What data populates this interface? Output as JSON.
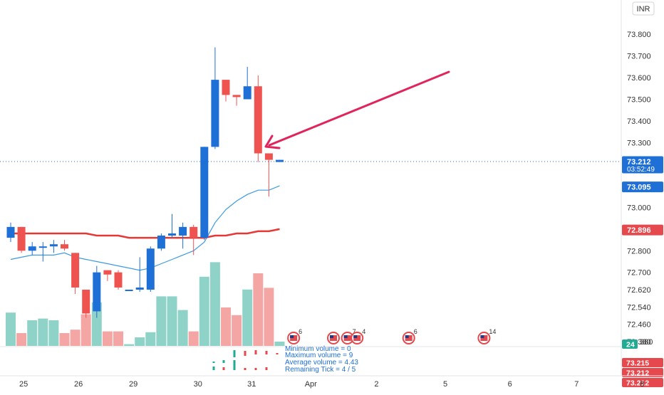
{
  "currency_button": "INR",
  "chart_data": {
    "type": "candlestick",
    "ylim": [
      72.38,
      73.86
    ],
    "y_ticks": [
      "73.800",
      "73.700",
      "73.600",
      "73.500",
      "73.400",
      "73.300",
      "73.000",
      "72.800",
      "72.700",
      "72.620",
      "72.540",
      "72.460",
      "72.380"
    ],
    "x_tick_labels": [
      "25",
      "26",
      "29",
      "30",
      "31",
      "Apr",
      "2",
      "5",
      "6",
      "7",
      "8"
    ],
    "x_tick_index": [
      1.2,
      6.3,
      11.4,
      17.4,
      22.4,
      27.9,
      34.0,
      40.4,
      46.4,
      52.6,
      58.7
    ],
    "candles": [
      {
        "o": 72.86,
        "h": 72.93,
        "l": 72.84,
        "c": 72.91
      },
      {
        "o": 72.91,
        "h": 72.91,
        "l": 72.79,
        "c": 72.8
      },
      {
        "o": 72.8,
        "h": 72.84,
        "l": 72.78,
        "c": 72.82
      },
      {
        "o": 72.82,
        "h": 72.84,
        "l": 72.75,
        "c": 72.82
      },
      {
        "o": 72.82,
        "h": 72.85,
        "l": 72.79,
        "c": 72.83
      },
      {
        "o": 72.83,
        "h": 72.85,
        "l": 72.8,
        "c": 72.81
      },
      {
        "o": 72.79,
        "h": 72.79,
        "l": 72.6,
        "c": 72.63
      },
      {
        "o": 72.62,
        "h": 72.62,
        "l": 72.49,
        "c": 72.51
      },
      {
        "o": 72.52,
        "h": 72.73,
        "l": 72.49,
        "c": 72.7
      },
      {
        "o": 72.71,
        "h": 72.71,
        "l": 72.66,
        "c": 72.69
      },
      {
        "o": 72.7,
        "h": 72.71,
        "l": 72.62,
        "c": 72.63
      },
      {
        "o": 72.62,
        "h": 72.62,
        "l": 72.62,
        "c": 72.62
      },
      {
        "o": 72.62,
        "h": 72.77,
        "l": 72.61,
        "c": 72.63
      },
      {
        "o": 72.62,
        "h": 72.82,
        "l": 72.61,
        "c": 72.81
      },
      {
        "o": 72.81,
        "h": 72.88,
        "l": 72.8,
        "c": 72.87
      },
      {
        "o": 72.87,
        "h": 72.97,
        "l": 72.86,
        "c": 72.88
      },
      {
        "o": 72.87,
        "h": 72.93,
        "l": 72.81,
        "c": 72.91
      },
      {
        "o": 72.91,
        "h": 72.92,
        "l": 72.78,
        "c": 72.86
      },
      {
        "o": 72.86,
        "h": 73.28,
        "l": 72.85,
        "c": 73.28
      },
      {
        "o": 73.28,
        "h": 73.74,
        "l": 73.27,
        "c": 73.59
      },
      {
        "o": 73.59,
        "h": 73.59,
        "l": 73.49,
        "c": 73.52
      },
      {
        "o": 73.52,
        "h": 73.52,
        "l": 73.47,
        "c": 73.51
      },
      {
        "o": 73.5,
        "h": 73.65,
        "l": 73.5,
        "c": 73.56
      },
      {
        "o": 73.56,
        "h": 73.61,
        "l": 73.21,
        "c": 73.25
      },
      {
        "o": 73.25,
        "h": 73.25,
        "l": 73.05,
        "c": 73.22
      },
      {
        "o": 73.21,
        "h": 73.22,
        "l": 73.21,
        "c": 73.22
      }
    ],
    "volume_heights": [
      0.39,
      0.15,
      0.3,
      0.32,
      0.3,
      0.15,
      0.19,
      0.37,
      0.51,
      0.17,
      0.17,
      0.02,
      0.1,
      0.16,
      0.58,
      0.58,
      0.42,
      0.17,
      0.81,
      0.98,
      0.45,
      0.36,
      0.66,
      0.85,
      0.68,
      0.05
    ],
    "sma_values": [
      72.76,
      72.77,
      72.78,
      72.78,
      72.78,
      72.79,
      72.77,
      72.76,
      72.75,
      72.74,
      72.73,
      72.72,
      72.71,
      72.72,
      72.74,
      72.76,
      72.78,
      72.8,
      72.84,
      72.93,
      72.99,
      73.03,
      73.06,
      73.08,
      73.08,
      73.1
    ],
    "ema_values": [
      72.88,
      72.88,
      72.88,
      72.88,
      72.88,
      72.88,
      72.88,
      72.88,
      72.87,
      72.87,
      72.87,
      72.86,
      72.86,
      72.86,
      72.86,
      72.86,
      72.86,
      72.86,
      72.86,
      72.87,
      72.87,
      72.88,
      72.88,
      72.89,
      72.89,
      72.9
    ],
    "last_price_value": 73.212,
    "price_badges": [
      {
        "label": "73.212",
        "sub": "03:52:49",
        "value": 73.212,
        "color": "#1e6fd6"
      },
      {
        "label": "73.095",
        "value": 73.095,
        "color": "#1e6fd6"
      },
      {
        "label": "72.896",
        "value": 72.896,
        "color": "#e5484d"
      }
    ],
    "event_markers": [
      {
        "index": 26.3,
        "label": "6"
      },
      {
        "index": 30.0,
        "label": ""
      },
      {
        "index": 31.3,
        "label": "7"
      },
      {
        "index": 32.2,
        "label": "4"
      },
      {
        "index": 37.0,
        "label": "6"
      },
      {
        "index": 44.0,
        "label": "14"
      }
    ],
    "indicator_text": [
      "Minimum volume = 0",
      "Maximum volume = 9",
      "Average volume = 4.43",
      "Remaining Tick = 4 / 5"
    ],
    "indicator_badges": [
      {
        "label": "24",
        "color": "#22ab94"
      },
      {
        "label": "73.215",
        "color": "#e5484d"
      },
      {
        "label": "73.212",
        "color": "#e5484d"
      },
      {
        "label": "73.212",
        "color": "#e5484d"
      }
    ],
    "axis_label_partial": "380",
    "colors": {
      "up": "#1e6fd6",
      "down": "#ef5350",
      "vol_up": "#8fd3c8",
      "vol_down": "#f4a6a4",
      "sma": "#3d9be0",
      "ema": "#e53935",
      "arrow": "#e0255c",
      "grid_text": "#333333"
    }
  }
}
